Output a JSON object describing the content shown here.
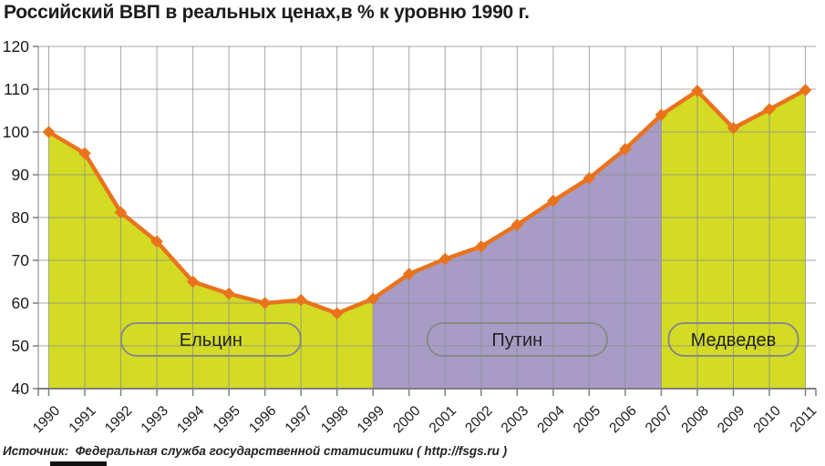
{
  "chart_data": {
    "type": "area",
    "title": "Российский ВВП в реальных ценах,в % к уровню 1990 г.",
    "source": "Источник:  Федеральная служба государственной статиситики ( http://fsgs.ru )",
    "x": [
      1990,
      1991,
      1992,
      1993,
      1994,
      1995,
      1996,
      1997,
      1998,
      1999,
      2000,
      2001,
      2002,
      2003,
      2004,
      2005,
      2006,
      2007,
      2008,
      2009,
      2010,
      2011
    ],
    "values": [
      100,
      95,
      81.2,
      74.4,
      65,
      62.2,
      60,
      60.7,
      57.6,
      61,
      66.8,
      70.3,
      73.2,
      78.3,
      83.9,
      89.2,
      96,
      104,
      109.6,
      100.9,
      105.3,
      109.8
    ],
    "ylim": [
      40,
      120
    ],
    "y_ticks": [
      40,
      50,
      60,
      70,
      80,
      90,
      100,
      110,
      120
    ],
    "grid": true,
    "legend_position": "none",
    "marker": "diamond",
    "line_color": "#E9731D",
    "marker_color": "#E9731D",
    "grid_color": "#8B8B8B",
    "axis_color": "#7F7F7F",
    "label_color": "#1a1a1a",
    "region_label_border": "#898989",
    "regions": [
      {
        "label": "Ельцин",
        "from": 1990,
        "to": 1999,
        "fill": "#D3DB24"
      },
      {
        "label": "Путин",
        "from": 1999,
        "to": 2007,
        "fill": "#A89CC7"
      },
      {
        "label": "Медведев",
        "from": 2007,
        "to": 2011,
        "fill": "#D3DB24"
      }
    ]
  }
}
